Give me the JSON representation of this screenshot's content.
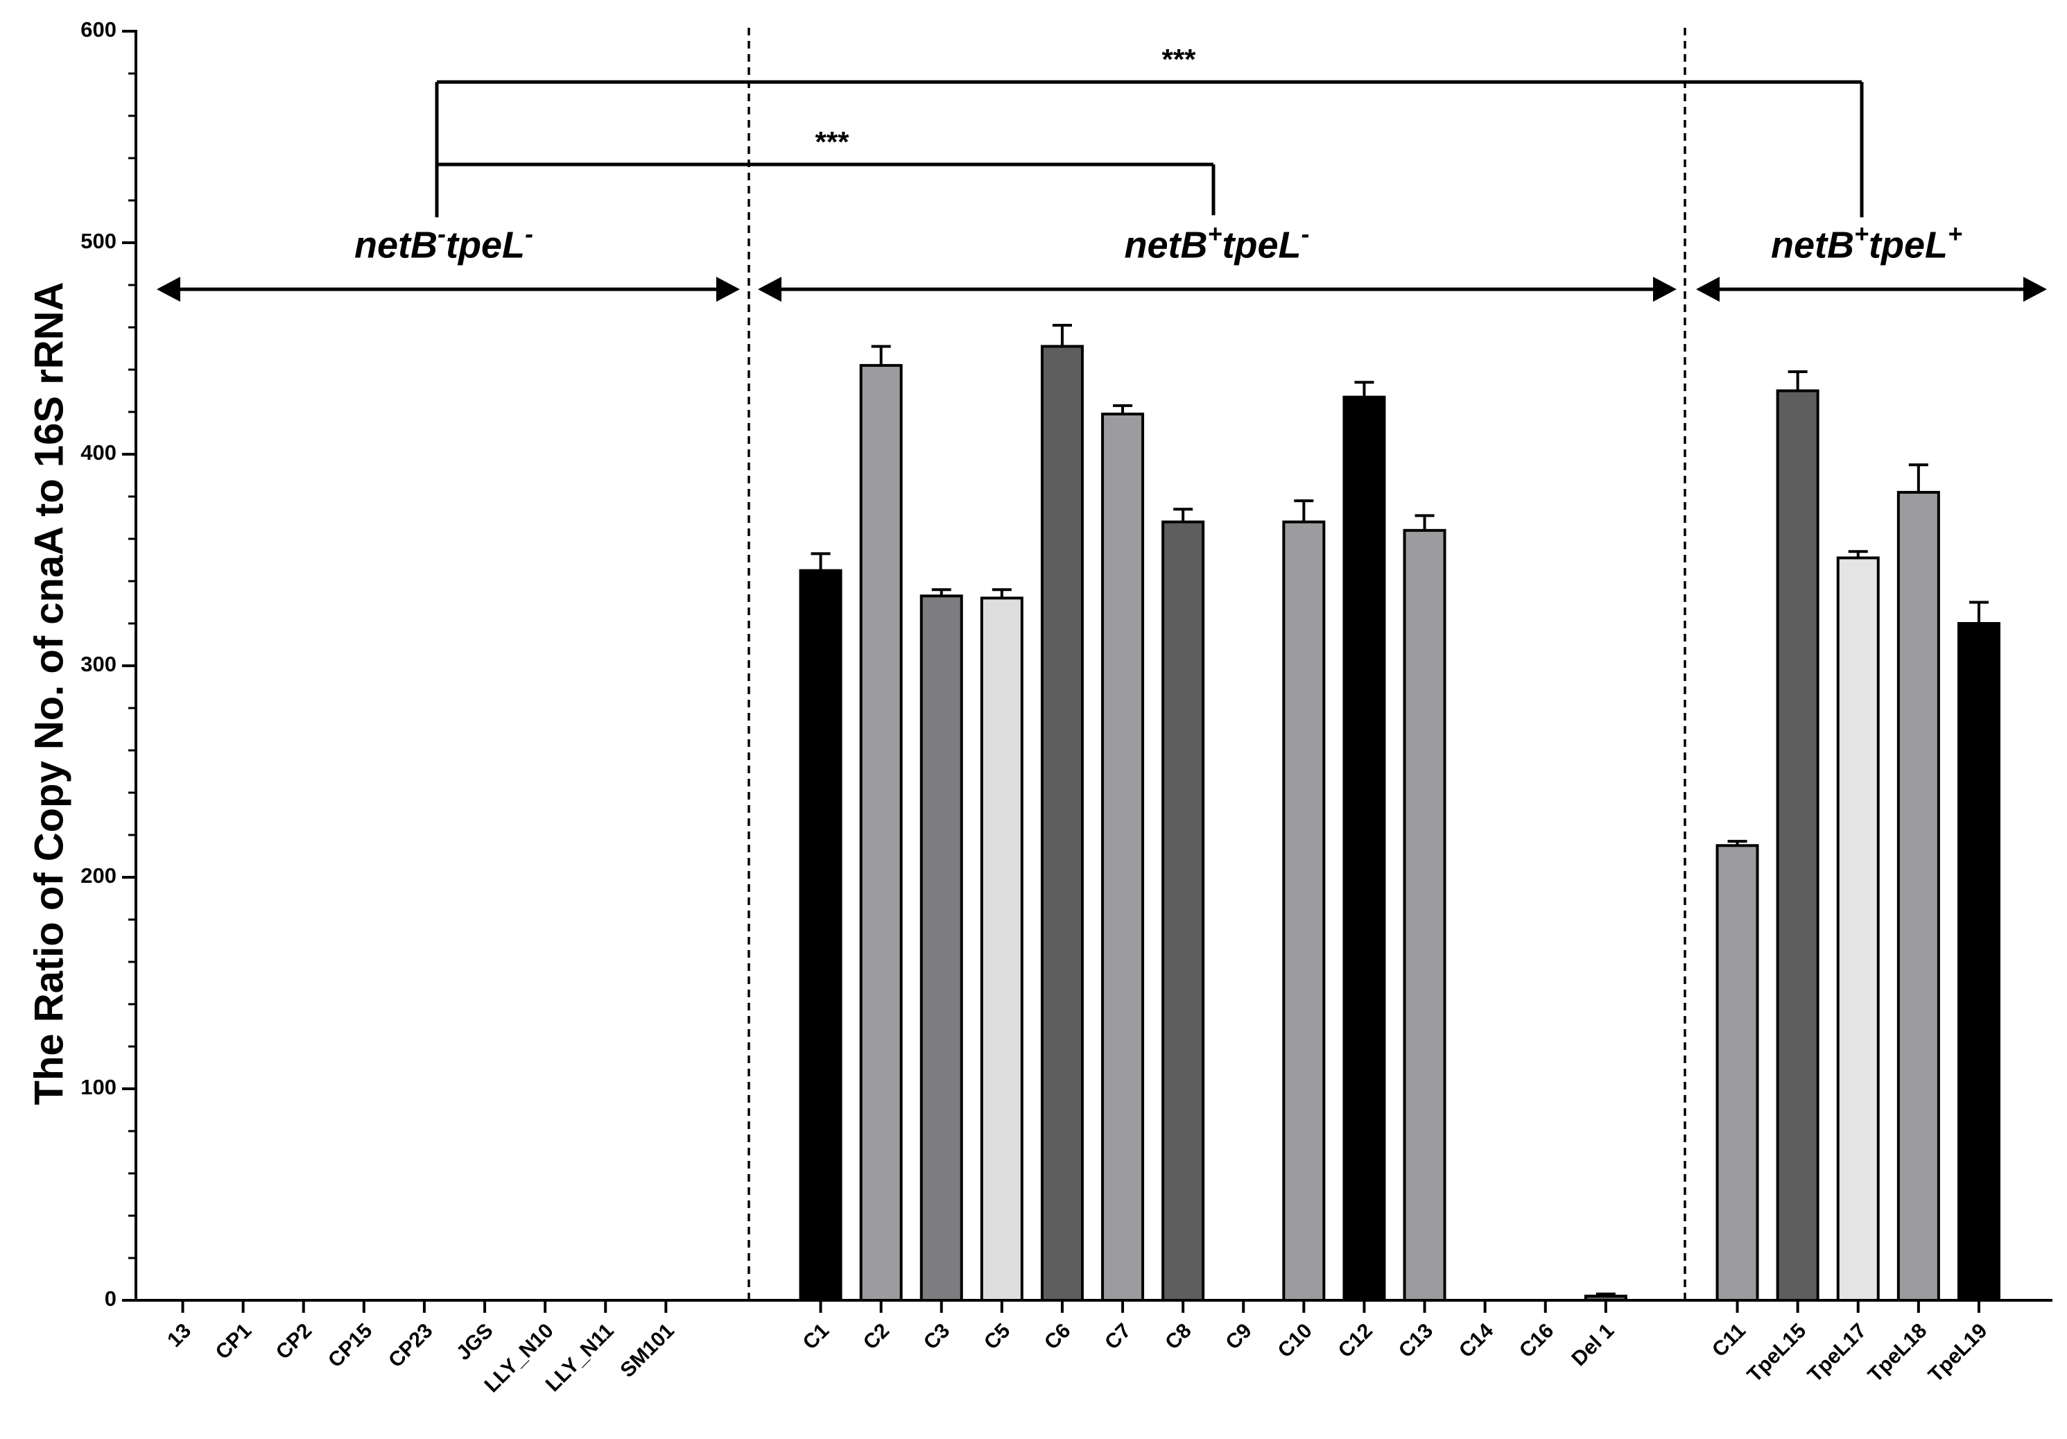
{
  "chart_data": {
    "type": "bar",
    "title": "",
    "xlabel": "",
    "ylabel": "The Ratio of Copy No. of cnaA to 16S rRNA",
    "ylim": [
      0,
      600
    ],
    "yticks": [
      0,
      100,
      200,
      300,
      400,
      500,
      600
    ],
    "grid": false,
    "categories": [
      "13",
      "CP1",
      "CP2",
      "CP15",
      "CP23",
      "JGS",
      "LLY_N10",
      "LLY_N11",
      "SM101",
      "C1",
      "C2",
      "C3",
      "C5",
      "C6",
      "C7",
      "C8",
      "C9",
      "C10",
      "C12",
      "C13",
      "C14",
      "C16",
      "Del 1",
      "C11",
      "TpeL15",
      "TpeL17",
      "TpeL18",
      "TpeL19"
    ],
    "values": [
      0,
      0,
      0,
      0,
      0,
      0,
      0,
      0,
      0,
      345,
      442,
      333,
      332,
      451,
      419,
      368,
      0,
      368,
      427,
      364,
      0,
      0,
      2,
      215,
      430,
      351,
      382,
      320
    ],
    "errors": [
      0,
      0,
      0,
      0,
      0,
      0,
      0,
      0,
      0,
      8,
      9,
      3,
      4,
      10,
      4,
      6,
      0,
      10,
      7,
      7,
      0,
      0,
      1,
      2,
      9,
      3,
      13,
      10
    ],
    "bar_colors": [
      "#000000",
      "#000000",
      "#000000",
      "#000000",
      "#000000",
      "#000000",
      "#000000",
      "#000000",
      "#000000",
      "#000000",
      "#9c9c9f",
      "#7d7d7f",
      "#dedede",
      "#5e5e5e",
      "#9c9c9f",
      "#5e5e5e",
      "#9c9c9f",
      "#9c9c9f",
      "#000000",
      "#9c9c9f",
      "#9c9c9f",
      "#9c9c9f",
      "#5e5e5e",
      "#9c9c9f",
      "#5e5e5e",
      "#e4e4e4",
      "#9c9c9f",
      "#000000"
    ],
    "groups": [
      {
        "base": "netB",
        "sup1": "-",
        "mid": "tpeL",
        "sup2": "-",
        "start": 0,
        "end": 8
      },
      {
        "base": "netB",
        "sup1": "+",
        "mid": "tpeL",
        "sup2": "-",
        "start": 9,
        "end": 22
      },
      {
        "base": "netB",
        "sup1": "+",
        "mid": "tpeL",
        "sup2": "+",
        "start": 23,
        "end": 27
      }
    ],
    "significance": [
      {
        "label": "***",
        "y": 537,
        "from_group": 0,
        "to_group": 1
      },
      {
        "label": "***",
        "y": 576,
        "from_group": 0,
        "to_group": 2
      }
    ]
  }
}
